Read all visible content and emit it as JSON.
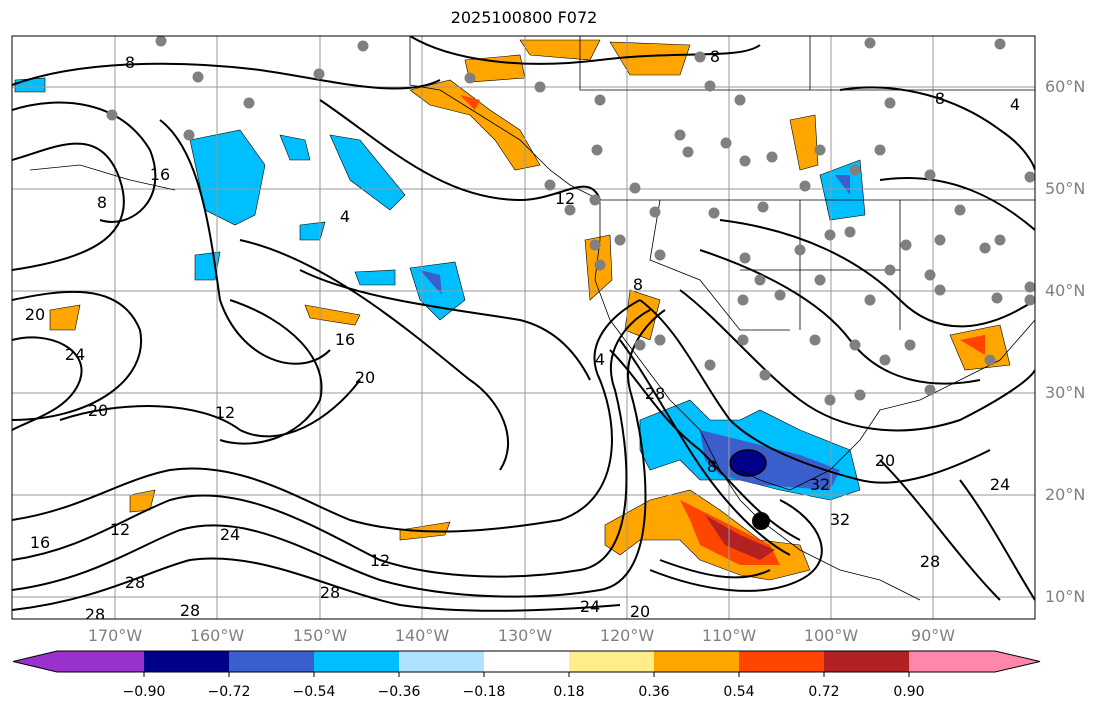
{
  "title": "2025100800 F072",
  "latitude_labels": [
    "60°N",
    "50°N",
    "40°N",
    "30°N",
    "20°N",
    "10°N"
  ],
  "longitude_labels": [
    "170°W",
    "160°W",
    "150°W",
    "140°W",
    "130°W",
    "120°W",
    "110°W",
    "100°W",
    "90°W"
  ],
  "colorbar": {
    "ticks": [
      "−0.90",
      "−0.72",
      "−0.54",
      "−0.36",
      "−0.18",
      "0.18",
      "0.36",
      "0.54",
      "0.72",
      "0.90"
    ],
    "colors": [
      "#9932cc",
      "#00008b",
      "#3a5fcd",
      "#00bfff",
      "#b0e2ff",
      "#ffffff",
      "#ffec8b",
      "#ffa500",
      "#ff4500",
      "#b22222",
      "#ff88aa"
    ]
  },
  "contour_labels": [
    "8",
    "16",
    "8",
    "4",
    "12",
    "20",
    "24",
    "20",
    "16",
    "20",
    "12",
    "16",
    "24",
    "12",
    "28",
    "28",
    "28",
    "28",
    "12",
    "24",
    "20",
    "4",
    "8",
    "28",
    "8",
    "32",
    "32",
    "28",
    "20",
    "24",
    "8",
    "4",
    "8"
  ],
  "markers": {
    "low_center_color": "#00008b",
    "storm_center_color": "#000000",
    "station_color": "#808080"
  }
}
